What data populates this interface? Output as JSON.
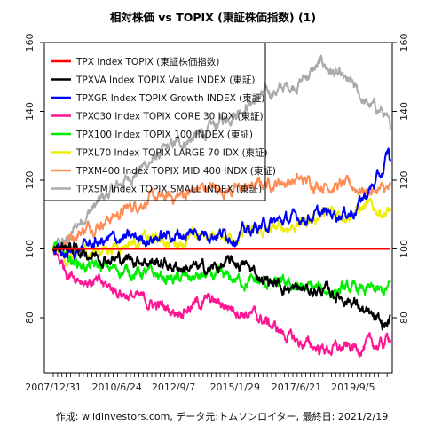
{
  "chart_data": {
    "type": "line",
    "title": "相対株価 vs TOPIX (東証株価指数) (1)",
    "footer": "作成: wildinvestors.com, データ元:トムソンロイター, 最終日: 2021/2/19",
    "x_range": [
      "2007-12-31",
      "2021-02-19"
    ],
    "xticks": [
      "2007/12/31",
      "2010/6/24",
      "2012/9/7",
      "2015/1/29",
      "2017/6/21",
      "2019/9/5"
    ],
    "ylim": [
      64,
      160
    ],
    "yticks": [
      80,
      100,
      120,
      140,
      160
    ],
    "grid": false,
    "legend_position": "top-left",
    "series": [
      {
        "name": "TPX Index TOPIX (東証株価指数)",
        "color": "#ff0000",
        "points": [
          [
            "2007-12-31",
            100
          ],
          [
            "2021-02-19",
            100
          ]
        ]
      },
      {
        "name": "TPXVA Index TOPIX Value INDEX (東証)",
        "color": "#000000",
        "points": [
          [
            "2007-12-31",
            100
          ],
          [
            "2008-06-30",
            101
          ],
          [
            "2009-03-31",
            99
          ],
          [
            "2010-06-30",
            97
          ],
          [
            "2011-06-30",
            97
          ],
          [
            "2012-09-07",
            95
          ],
          [
            "2013-12-31",
            94
          ],
          [
            "2015-01-29",
            96
          ],
          [
            "2015-06-30",
            95
          ],
          [
            "2016-03-31",
            91
          ],
          [
            "2017-06-21",
            88
          ],
          [
            "2018-06-30",
            88
          ],
          [
            "2019-09-05",
            85
          ],
          [
            "2020-03-15",
            81
          ],
          [
            "2020-10-31",
            77
          ],
          [
            "2021-02-19",
            79
          ]
        ]
      },
      {
        "name": "TPXGR Index TOPIX Growth INDEX (東証)",
        "color": "#0000ff",
        "points": [
          [
            "2007-12-31",
            100
          ],
          [
            "2008-06-30",
            98
          ],
          [
            "2009-03-31",
            101
          ],
          [
            "2010-06-24",
            103
          ],
          [
            "2011-06-30",
            103
          ],
          [
            "2012-09-07",
            104
          ],
          [
            "2013-12-31",
            105
          ],
          [
            "2015-01-29",
            104
          ],
          [
            "2016-03-31",
            107
          ],
          [
            "2017-06-21",
            109
          ],
          [
            "2018-06-30",
            110
          ],
          [
            "2019-09-05",
            111
          ],
          [
            "2020-03-15",
            116
          ],
          [
            "2020-10-31",
            122
          ],
          [
            "2021-01-20",
            128
          ],
          [
            "2021-02-19",
            125
          ]
        ]
      },
      {
        "name": "TPXC30 Index TOPIX CORE 30 IDX (東証)",
        "color": "#ff1493",
        "points": [
          [
            "2007-12-31",
            100
          ],
          [
            "2008-06-30",
            94
          ],
          [
            "2009-03-31",
            91
          ],
          [
            "2010-06-24",
            88
          ],
          [
            "2011-06-30",
            85
          ],
          [
            "2012-09-07",
            82
          ],
          [
            "2013-12-31",
            85
          ],
          [
            "2015-01-29",
            83
          ],
          [
            "2016-03-31",
            79
          ],
          [
            "2017-06-21",
            73
          ],
          [
            "2018-06-30",
            71
          ],
          [
            "2019-09-05",
            71
          ],
          [
            "2020-03-15",
            72
          ],
          [
            "2020-10-31",
            72
          ],
          [
            "2021-02-19",
            75
          ]
        ]
      },
      {
        "name": "TPX100 Index TOPIX 100 INDEX (東証)",
        "color": "#00ee00",
        "points": [
          [
            "2007-12-31",
            100
          ],
          [
            "2008-06-30",
            98
          ],
          [
            "2009-03-31",
            95
          ],
          [
            "2010-06-24",
            94
          ],
          [
            "2011-06-30",
            93
          ],
          [
            "2012-09-07",
            91
          ],
          [
            "2013-12-31",
            92
          ],
          [
            "2015-01-29",
            91
          ],
          [
            "2016-03-31",
            90
          ],
          [
            "2017-06-21",
            89
          ],
          [
            "2018-06-30",
            88
          ],
          [
            "2019-09-05",
            88
          ],
          [
            "2020-03-15",
            88
          ],
          [
            "2020-10-31",
            87
          ],
          [
            "2021-02-19",
            89
          ]
        ]
      },
      {
        "name": "TPXL70 Index TOPIX LARGE 70 IDX (東証)",
        "color": "#eeee00",
        "points": [
          [
            "2007-12-31",
            100
          ],
          [
            "2008-06-30",
            97
          ],
          [
            "2009-03-31",
            99
          ],
          [
            "2010-06-24",
            101
          ],
          [
            "2011-06-30",
            103
          ],
          [
            "2012-09-07",
            102
          ],
          [
            "2013-12-31",
            104
          ],
          [
            "2015-01-29",
            104
          ],
          [
            "2016-03-31",
            105
          ],
          [
            "2017-06-21",
            107
          ],
          [
            "2018-06-30",
            110
          ],
          [
            "2019-09-05",
            111
          ],
          [
            "2020-03-15",
            112
          ],
          [
            "2020-10-31",
            111
          ],
          [
            "2021-02-19",
            111
          ]
        ]
      },
      {
        "name": "TPXM400 Index TOPIX MID 400 INDX (東証)",
        "color": "#ff8c55",
        "points": [
          [
            "2007-12-31",
            100
          ],
          [
            "2008-06-30",
            103
          ],
          [
            "2009-03-31",
            106
          ],
          [
            "2010-06-24",
            110
          ],
          [
            "2011-06-30",
            114
          ],
          [
            "2012-09-07",
            115
          ],
          [
            "2013-12-31",
            118
          ],
          [
            "2015-01-29",
            117
          ],
          [
            "2016-03-31",
            119
          ],
          [
            "2017-06-21",
            120
          ],
          [
            "2018-06-30",
            119
          ],
          [
            "2019-09-05",
            118
          ],
          [
            "2020-03-15",
            117
          ],
          [
            "2020-10-31",
            117
          ],
          [
            "2021-02-19",
            117
          ]
        ]
      },
      {
        "name": "TPXSM Index TOPIX SMALL INDEX (東証)",
        "color": "#aaaaaa",
        "points": [
          [
            "2007-12-31",
            100
          ],
          [
            "2008-06-30",
            102
          ],
          [
            "2009-03-31",
            110
          ],
          [
            "2010-06-24",
            118
          ],
          [
            "2011-06-30",
            124
          ],
          [
            "2012-09-07",
            130
          ],
          [
            "2013-12-31",
            134
          ],
          [
            "2015-01-29",
            140
          ],
          [
            "2016-03-31",
            145
          ],
          [
            "2017-06-21",
            148
          ],
          [
            "2018-06-30",
            154
          ],
          [
            "2019-03-31",
            149
          ],
          [
            "2019-09-05",
            147
          ],
          [
            "2020-03-15",
            142
          ],
          [
            "2020-10-31",
            140
          ],
          [
            "2021-02-19",
            134
          ]
        ]
      }
    ]
  }
}
